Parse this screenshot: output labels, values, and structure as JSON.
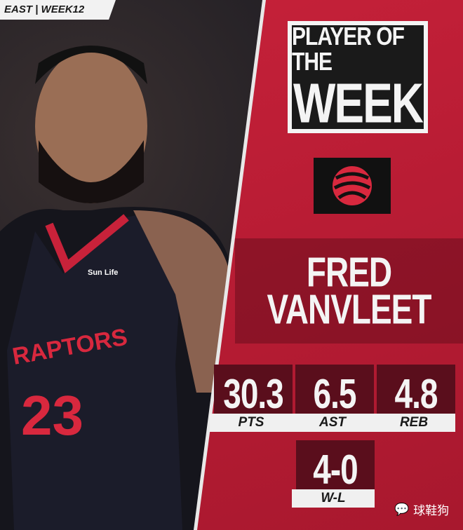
{
  "tag": "EAST | WEEK12",
  "title": {
    "line1": "PLAYER OF THE",
    "line2": "WEEK"
  },
  "player": {
    "first": "FRED",
    "last": "VANVLEET",
    "number": "23",
    "jersey_text": "RAPTORS",
    "sponsor": "Sun Life"
  },
  "stats": [
    {
      "value": "30.3",
      "label": "PTS"
    },
    {
      "value": "6.5",
      "label": "AST"
    },
    {
      "value": "4.8",
      "label": "REB"
    },
    {
      "value": "4-0",
      "label": "W-L"
    }
  ],
  "watermark": "球鞋狗",
  "colors": {
    "accent": "#c8223a",
    "dark": "#5a0e1c",
    "light": "#f4f4f4"
  }
}
